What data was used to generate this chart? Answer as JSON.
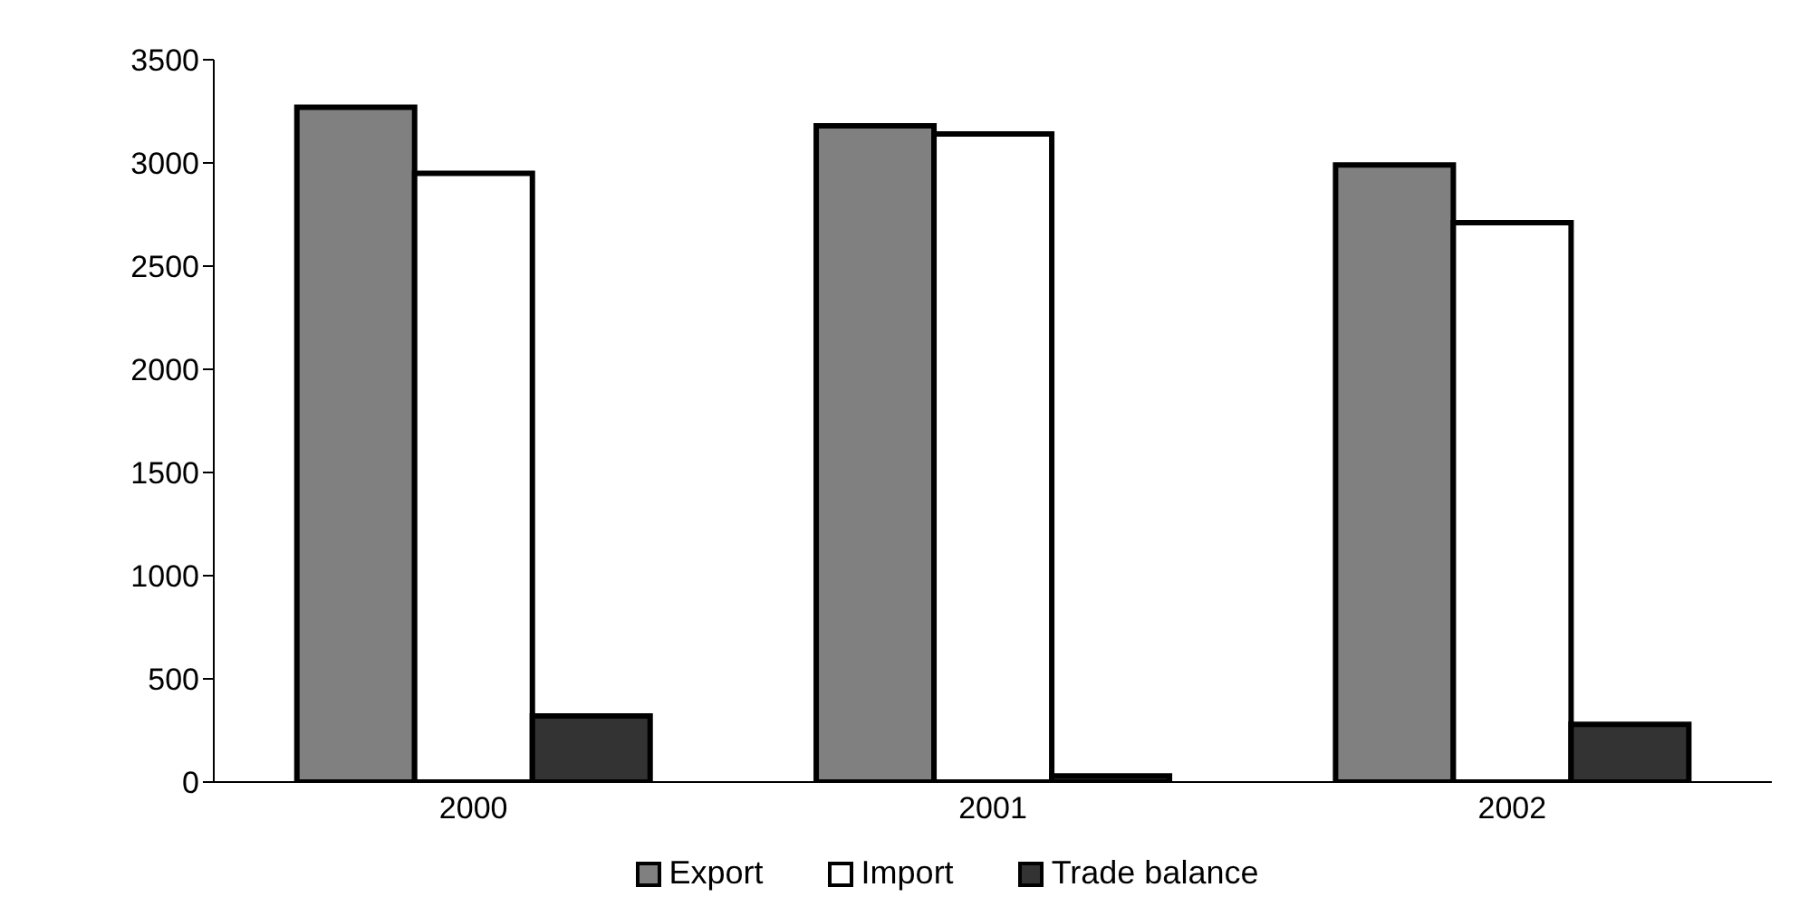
{
  "chart_data": {
    "type": "bar",
    "categories": [
      "2000",
      "2001",
      "2002"
    ],
    "series": [
      {
        "name": "Export",
        "color": "#808080",
        "values": [
          3270,
          3180,
          2990
        ]
      },
      {
        "name": "Import",
        "color": "#ffffff",
        "values": [
          2950,
          3140,
          2710
        ]
      },
      {
        "name": "Trade balance",
        "color": "#333333",
        "values": [
          320,
          30,
          280
        ]
      }
    ],
    "ylim": [
      0,
      3500
    ],
    "yticks": [
      0,
      500,
      1000,
      1500,
      2000,
      2500,
      3000,
      3500
    ],
    "grid": false,
    "legend": "bottom"
  }
}
